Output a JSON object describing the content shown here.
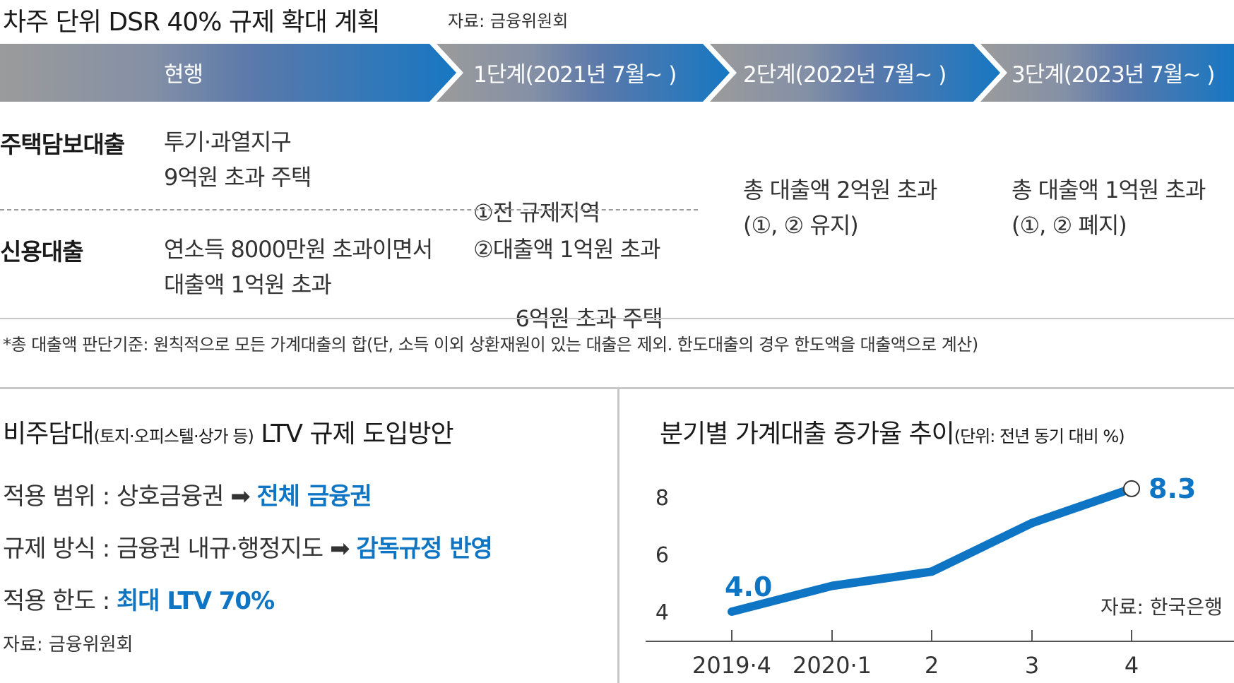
{
  "header": {
    "title": "차주 단위 DSR 40% 규제 확대 계획",
    "source": "자료: 금융위원회"
  },
  "stages": [
    "현행",
    "1단계(2021년 7월~ )",
    "2단계(2022년 7월~ )",
    "3단계(2023년 7월~ )"
  ],
  "rows": {
    "mortgage": {
      "label": "주택담보대출",
      "current": [
        "투기·과열지구",
        "9억원 초과 주택"
      ],
      "stage1": [
        "①전 규제지역",
        "   6억원 초과 주택"
      ]
    },
    "credit": {
      "label": "신용대출",
      "current": [
        "연소득 8000만원 초과이면서",
        "대출액 1억원 초과"
      ],
      "stage1": [
        "②대출액 1억원 초과"
      ]
    },
    "stage2": [
      "총 대출액 2억원 초과",
      "(①, ② 유지)"
    ],
    "stage3": [
      "총 대출액 1억원 초과",
      "(①, ② 폐지)"
    ]
  },
  "footnote": "*총 대출액 판단기준: 원칙적으로 모든 가계대출의 합(단, 소득 이외 상환재원이 있는 대출은 제외. 한도대출의 경우 한도액을 대출액으로 계산)",
  "ltv": {
    "title": "비주담대",
    "title_sub": "(토지·오피스텔·상가 등)",
    "title_rest": " LTV 규제 도입방안",
    "items": [
      {
        "label": "적용 범위 : 상호금융권 ➡ ",
        "highlight": "전체 금융권"
      },
      {
        "label": "규제 방식 : 금융권 내규·행정지도 ➡ ",
        "highlight": "감독규정 반영"
      },
      {
        "label": "적용 한도 : ",
        "highlight": "최대 LTV 70%"
      }
    ],
    "source": "자료: 금융위원회"
  },
  "chart_title": {
    "main": "분기별 가계대출 증가율 추이",
    "unit": "(단위: 전년 동기 대비 %)"
  },
  "chart_source": "자료: 한국은행",
  "colors": {
    "accent": "#0d75c3",
    "bar_grey": "#9a9a9a",
    "bar_blue": "#1777c2"
  },
  "chart_data": {
    "type": "line",
    "categories": [
      "2019·4",
      "2020·1",
      "2",
      "3",
      "4"
    ],
    "values": [
      4.0,
      4.9,
      5.4,
      7.1,
      8.3
    ],
    "labeled": {
      "0": "4.0",
      "4": "8.3"
    },
    "yticks": [
      "4",
      "6",
      "8"
    ],
    "ylim": [
      4,
      8.3
    ],
    "grid": false
  }
}
